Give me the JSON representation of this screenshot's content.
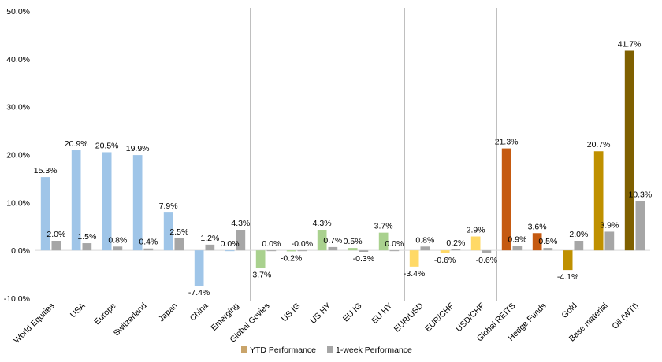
{
  "chart_data": {
    "type": "bar",
    "categories": [
      "World Equities",
      "USA",
      "Europe",
      "Switzerland",
      "Japan",
      "China",
      "Emerging",
      "Global Govies",
      "US IG",
      "US HY",
      "EU IG",
      "EU HY",
      "EUR/USD",
      "EUR/CHF",
      "USD/CHF",
      "Global REITS",
      "Hedge Funds",
      "Gold",
      "Base material",
      "Oil (WTI)"
    ],
    "series": [
      {
        "name": "YTD Performance",
        "values": [
          15.3,
          20.9,
          20.5,
          19.9,
          7.9,
          -7.4,
          0.0,
          -3.7,
          -0.2,
          4.3,
          0.5,
          3.7,
          -3.4,
          -0.6,
          2.9,
          21.3,
          3.6,
          -4.1,
          20.7,
          41.7
        ],
        "labels": [
          "15.3%",
          "20.9%",
          "20.5%",
          "19.9%",
          "7.9%",
          "-7.4%",
          "0.0%",
          "-3.7%",
          "-0.2%",
          "4.3%",
          "0.5%",
          "3.7%",
          "-3.4%",
          "-0.6%",
          "2.9%",
          "21.3%",
          "3.6%",
          "-4.1%",
          "20.7%",
          "41.7%"
        ]
      },
      {
        "name": "1-week Performance",
        "values": [
          2.0,
          1.5,
          0.8,
          0.4,
          2.5,
          1.2,
          4.3,
          0.0,
          0.0,
          0.7,
          -0.3,
          0.0,
          0.8,
          0.2,
          -0.6,
          0.9,
          0.5,
          2.0,
          3.9,
          10.3
        ],
        "labels": [
          "2.0%",
          "1.5%",
          "0.8%",
          "0.4%",
          "2.5%",
          "1.2%",
          "4.3%",
          "0.0%",
          "-0.0%",
          "0.7%",
          "-0.3%",
          "0.0%",
          "0.8%",
          "0.2%",
          "-0.6%",
          "0.9%",
          "0.5%",
          "2.0%",
          "3.9%",
          "10.3%"
        ]
      }
    ],
    "ytd_colors": [
      "#9fc5e8",
      "#9fc5e8",
      "#9fc5e8",
      "#9fc5e8",
      "#9fc5e8",
      "#9fc5e8",
      "#9fc5e8",
      "#a9d18e",
      "#a9d18e",
      "#a9d18e",
      "#a9d18e",
      "#a9d18e",
      "#ffd966",
      "#ffd966",
      "#ffd966",
      "#c55a11",
      "#c55a11",
      "#bf9000",
      "#bf9000",
      "#7f6000"
    ],
    "week_color": "#a6a6a6",
    "legend_ytd_color": "#c9a46a",
    "ylim": [
      -10,
      50
    ],
    "yticks": [
      -10,
      0,
      10,
      20,
      30,
      40,
      50
    ],
    "ytick_labels": [
      "-10.0%",
      "0.0%",
      "10.0%",
      "20.0%",
      "30.0%",
      "40.0%",
      "50.0%"
    ],
    "separators_after": [
      6,
      11,
      14
    ],
    "grid": false,
    "legend_position": "bottom"
  }
}
